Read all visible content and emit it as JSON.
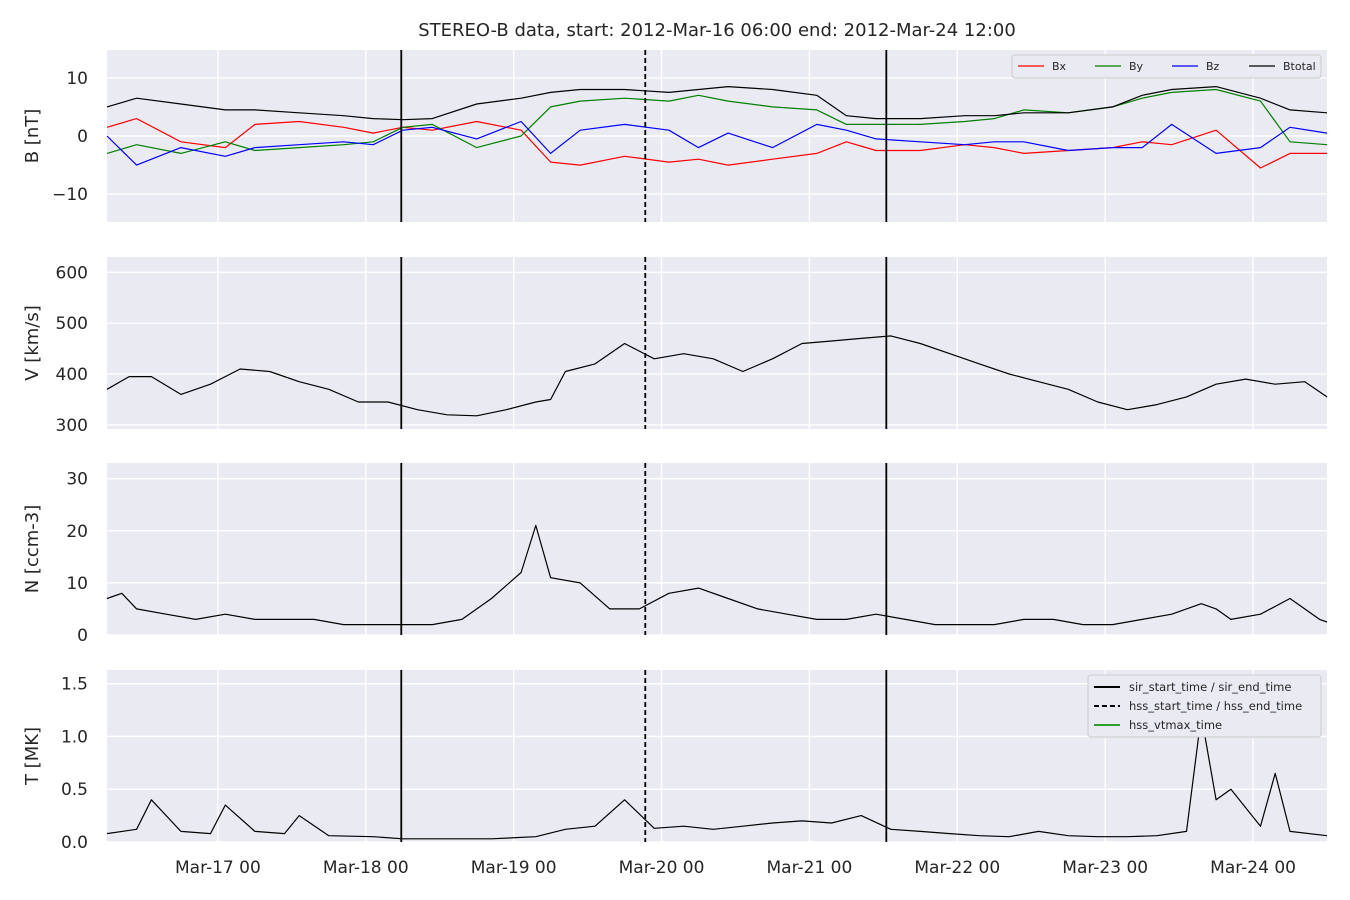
{
  "title": "STEREO-B data, start: 2012-Mar-16 06:00  end: 2012-Mar-24 12:00",
  "chart_data": [
    {
      "type": "line",
      "id": "b",
      "ylabel": "B [nT]",
      "ylim": [
        -14.8,
        14.8
      ],
      "yticks": [
        {
          "v": 10,
          "t": "10"
        },
        {
          "v": 0,
          "t": "0"
        },
        {
          "v": -10,
          "t": "−10"
        }
      ],
      "grid": true,
      "legend": {
        "placement": "upper-right",
        "layout": "horizontal",
        "entries": [
          {
            "label": "Bx",
            "color": "#ff0000"
          },
          {
            "label": "By",
            "color": "#008000"
          },
          {
            "label": "Bz",
            "color": "#0000ff"
          },
          {
            "label": "Btotal",
            "color": "#000000"
          }
        ]
      },
      "series": [
        {
          "name": "Bx",
          "color": "#ff0000",
          "x": [
            0.0,
            0.2,
            0.5,
            0.8,
            1.0,
            1.3,
            1.6,
            1.8,
            2.0,
            2.2,
            2.5,
            2.8,
            3.0,
            3.2,
            3.5,
            3.8,
            4.0,
            4.2,
            4.5,
            4.8,
            5.0,
            5.2,
            5.5,
            5.8,
            6.0,
            6.2,
            6.5,
            6.8,
            7.0,
            7.2,
            7.5,
            7.8,
            8.0,
            8.25
          ],
          "values": [
            1.5,
            3.0,
            -1.0,
            -2.0,
            2.0,
            2.5,
            1.5,
            0.5,
            1.5,
            1.0,
            2.5,
            1.0,
            -4.5,
            -5.0,
            -3.5,
            -4.5,
            -4.0,
            -5.0,
            -4.0,
            -3.0,
            -1.0,
            -2.5,
            -2.5,
            -1.5,
            -2.0,
            -3.0,
            -2.5,
            -2.0,
            -1.0,
            -1.5,
            1.0,
            -5.5,
            -3.0,
            -3.0
          ]
        },
        {
          "name": "By",
          "color": "#008000",
          "x": [
            0.0,
            0.2,
            0.5,
            0.8,
            1.0,
            1.3,
            1.6,
            1.8,
            2.0,
            2.2,
            2.5,
            2.8,
            3.0,
            3.2,
            3.5,
            3.8,
            4.0,
            4.2,
            4.5,
            4.8,
            5.0,
            5.2,
            5.5,
            5.8,
            6.0,
            6.2,
            6.5,
            6.8,
            7.0,
            7.2,
            7.5,
            7.8,
            8.0,
            8.25
          ],
          "values": [
            -3.0,
            -1.5,
            -3.0,
            -1.0,
            -2.5,
            -2.0,
            -1.5,
            -1.0,
            1.5,
            2.0,
            -2.0,
            0.0,
            5.0,
            6.0,
            6.5,
            6.0,
            7.0,
            6.0,
            5.0,
            4.5,
            2.0,
            2.0,
            2.0,
            2.5,
            3.0,
            4.5,
            4.0,
            5.0,
            6.5,
            7.5,
            8.0,
            6.0,
            -1.0,
            -1.5
          ]
        },
        {
          "name": "Bz",
          "color": "#0000ff",
          "x": [
            0.0,
            0.2,
            0.5,
            0.8,
            1.0,
            1.3,
            1.6,
            1.8,
            2.0,
            2.2,
            2.5,
            2.8,
            3.0,
            3.2,
            3.5,
            3.8,
            4.0,
            4.2,
            4.5,
            4.8,
            5.0,
            5.2,
            5.5,
            5.8,
            6.0,
            6.2,
            6.5,
            6.8,
            7.0,
            7.2,
            7.5,
            7.8,
            8.0,
            8.25
          ],
          "values": [
            0.0,
            -5.0,
            -2.0,
            -3.5,
            -2.0,
            -1.5,
            -1.0,
            -1.5,
            1.0,
            1.5,
            -0.5,
            2.5,
            -3.0,
            1.0,
            2.0,
            1.0,
            -2.0,
            0.5,
            -2.0,
            2.0,
            1.0,
            -0.5,
            -1.0,
            -1.5,
            -1.0,
            -1.0,
            -2.5,
            -2.0,
            -2.0,
            2.0,
            -3.0,
            -2.0,
            1.5,
            0.5
          ]
        },
        {
          "name": "Btotal",
          "color": "#000000",
          "x": [
            0.0,
            0.2,
            0.5,
            0.8,
            1.0,
            1.3,
            1.6,
            1.8,
            2.0,
            2.2,
            2.5,
            2.8,
            3.0,
            3.2,
            3.5,
            3.8,
            4.0,
            4.2,
            4.5,
            4.8,
            5.0,
            5.2,
            5.5,
            5.8,
            6.0,
            6.2,
            6.5,
            6.8,
            7.0,
            7.2,
            7.5,
            7.8,
            8.0,
            8.25
          ],
          "values": [
            5.0,
            6.5,
            5.5,
            4.5,
            4.5,
            4.0,
            3.5,
            3.0,
            2.8,
            3.0,
            5.5,
            6.5,
            7.5,
            8.0,
            8.0,
            7.5,
            8.0,
            8.5,
            8.0,
            7.0,
            3.5,
            3.0,
            3.0,
            3.5,
            3.5,
            4.0,
            4.0,
            5.0,
            7.0,
            8.0,
            8.5,
            6.5,
            4.5,
            4.0
          ]
        }
      ]
    },
    {
      "type": "line",
      "id": "v",
      "ylabel": "V [km/s]",
      "ylim": [
        292,
        630
      ],
      "yticks": [
        {
          "v": 600,
          "t": "600"
        },
        {
          "v": 500,
          "t": "500"
        },
        {
          "v": 400,
          "t": "400"
        },
        {
          "v": 300,
          "t": "300"
        }
      ],
      "grid": true,
      "series": [
        {
          "name": "V",
          "color": "#000000",
          "x": [
            0.0,
            0.15,
            0.3,
            0.5,
            0.7,
            0.9,
            1.1,
            1.3,
            1.5,
            1.7,
            1.9,
            2.1,
            2.3,
            2.5,
            2.7,
            2.9,
            3.0,
            3.1,
            3.3,
            3.5,
            3.7,
            3.9,
            4.1,
            4.3,
            4.5,
            4.7,
            4.9,
            5.1,
            5.3,
            5.5,
            5.7,
            5.9,
            6.1,
            6.3,
            6.5,
            6.7,
            6.9,
            7.1,
            7.3,
            7.5,
            7.7,
            7.9,
            8.1,
            8.25
          ],
          "values": [
            370,
            395,
            395,
            360,
            380,
            410,
            405,
            385,
            370,
            345,
            345,
            330,
            320,
            318,
            330,
            345,
            350,
            405,
            420,
            460,
            430,
            440,
            430,
            405,
            430,
            460,
            465,
            470,
            475,
            460,
            440,
            420,
            400,
            385,
            370,
            345,
            330,
            340,
            355,
            380,
            390,
            380,
            385,
            355
          ]
        }
      ]
    },
    {
      "type": "line",
      "id": "n",
      "ylabel": "N [ccm-3]",
      "ylim": [
        0,
        33
      ],
      "yticks": [
        {
          "v": 30,
          "t": "30"
        },
        {
          "v": 20,
          "t": "20"
        },
        {
          "v": 10,
          "t": "10"
        },
        {
          "v": 0,
          "t": "0"
        }
      ],
      "grid": true,
      "series": [
        {
          "name": "N",
          "color": "#000000",
          "x": [
            0.0,
            0.1,
            0.2,
            0.4,
            0.6,
            0.8,
            1.0,
            1.2,
            1.4,
            1.6,
            1.8,
            2.0,
            2.2,
            2.4,
            2.6,
            2.8,
            2.9,
            3.0,
            3.2,
            3.4,
            3.6,
            3.8,
            4.0,
            4.2,
            4.4,
            4.6,
            4.8,
            5.0,
            5.2,
            5.4,
            5.6,
            5.8,
            6.0,
            6.2,
            6.4,
            6.6,
            6.8,
            7.0,
            7.2,
            7.4,
            7.5,
            7.6,
            7.8,
            8.0,
            8.2,
            8.25
          ],
          "values": [
            7,
            8,
            5,
            4,
            3,
            4,
            3,
            3,
            3,
            2,
            2,
            2,
            2,
            3,
            7,
            12,
            21,
            11,
            10,
            5,
            5,
            8,
            9,
            7,
            5,
            4,
            3,
            3,
            4,
            3,
            2,
            2,
            2,
            3,
            3,
            2,
            2,
            3,
            4,
            6,
            5,
            3,
            4,
            7,
            3,
            2.5
          ]
        }
      ]
    },
    {
      "type": "line",
      "id": "t",
      "ylabel": "T [MK]",
      "ylim": [
        0,
        1.63
      ],
      "yticks": [
        {
          "v": 1.5,
          "t": "1.5"
        },
        {
          "v": 1.0,
          "t": "1.0"
        },
        {
          "v": 0.5,
          "t": "0.5"
        },
        {
          "v": 0.0,
          "t": "0.0"
        }
      ],
      "grid": true,
      "legend": {
        "placement": "upper-right",
        "layout": "vertical",
        "entries": [
          {
            "label": "sir_start_time / sir_end_time",
            "color": "#000000",
            "style": "solid"
          },
          {
            "label": "hss_start_time / hss_end_time",
            "color": "#000000",
            "style": "dashed"
          },
          {
            "label": "hss_vtmax_time",
            "color": "#2ca02c",
            "style": "solid"
          }
        ]
      },
      "series": [
        {
          "name": "T",
          "color": "#000000",
          "x": [
            0.0,
            0.2,
            0.3,
            0.5,
            0.7,
            0.8,
            1.0,
            1.2,
            1.3,
            1.5,
            1.8,
            2.0,
            2.3,
            2.6,
            2.9,
            3.1,
            3.3,
            3.5,
            3.7,
            3.9,
            4.1,
            4.3,
            4.5,
            4.7,
            4.9,
            5.1,
            5.3,
            5.5,
            5.7,
            5.9,
            6.1,
            6.3,
            6.5,
            6.7,
            6.9,
            7.1,
            7.3,
            7.4,
            7.5,
            7.6,
            7.8,
            7.9,
            8.0,
            8.25
          ],
          "values": [
            0.08,
            0.12,
            0.4,
            0.1,
            0.08,
            0.35,
            0.1,
            0.08,
            0.25,
            0.06,
            0.05,
            0.03,
            0.03,
            0.03,
            0.05,
            0.12,
            0.15,
            0.4,
            0.13,
            0.15,
            0.12,
            0.15,
            0.18,
            0.2,
            0.18,
            0.25,
            0.12,
            0.1,
            0.08,
            0.06,
            0.05,
            0.1,
            0.06,
            0.05,
            0.05,
            0.06,
            0.1,
            1.2,
            0.4,
            0.5,
            0.15,
            0.65,
            0.1,
            0.06
          ]
        }
      ]
    }
  ],
  "x_axis": {
    "xlim": [
      0,
      8.25
    ],
    "ticks": [
      {
        "v": 0.75,
        "t": "Mar-17 00"
      },
      {
        "v": 1.75,
        "t": "Mar-18 00"
      },
      {
        "v": 2.75,
        "t": "Mar-19 00"
      },
      {
        "v": 3.75,
        "t": "Mar-20 00"
      },
      {
        "v": 4.75,
        "t": "Mar-21 00"
      },
      {
        "v": 5.75,
        "t": "Mar-22 00"
      },
      {
        "v": 6.75,
        "t": "Mar-23 00"
      },
      {
        "v": 7.75,
        "t": "Mar-24 00"
      }
    ]
  },
  "event_lines": [
    {
      "name": "sir_start_time",
      "x": 1.99,
      "style": "solid",
      "color": "#000000"
    },
    {
      "name": "hss_start_time",
      "x": 3.64,
      "style": "dashed",
      "color": "#000000"
    },
    {
      "name": "sir_end_time",
      "x": 5.27,
      "style": "solid",
      "color": "#000000"
    }
  ]
}
